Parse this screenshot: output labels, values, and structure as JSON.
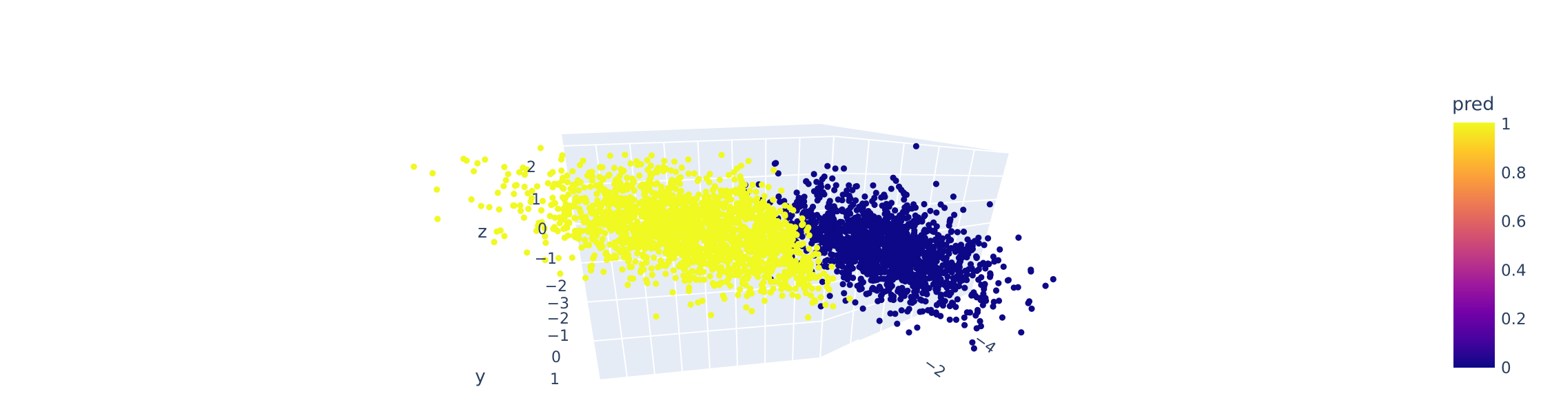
{
  "chart_data": {
    "type": "scatter3d",
    "title": "",
    "series": [
      {
        "pred": 1,
        "color": "#f0f921",
        "count": 1900,
        "x_range": [
          -2,
          5
        ],
        "y_range": [
          -3,
          2
        ],
        "z_range": [
          -2,
          2
        ]
      },
      {
        "pred": 0,
        "color": "#0d0887",
        "count": 1500,
        "x_range": [
          -5,
          -1
        ],
        "y_range": [
          -3,
          2
        ],
        "z_range": [
          -2,
          2
        ]
      }
    ],
    "axes": {
      "x": {
        "title": "",
        "ticks": [
          "−4",
          "−2"
        ]
      },
      "y": {
        "title": "y",
        "ticks": [
          "−3",
          "−2",
          "−1",
          "0",
          "1"
        ]
      },
      "z": {
        "title": "z",
        "ticks": [
          "2",
          "1",
          "0",
          "−1",
          "−2"
        ]
      }
    },
    "colorbar": {
      "title": "pred",
      "range": [
        0,
        1
      ],
      "ticks": [
        "1",
        "0.8",
        "0.6",
        "0.4",
        "0.2",
        "0"
      ],
      "colorscale": [
        "#0d0887",
        "#46039f",
        "#7201a8",
        "#9c179e",
        "#bd3786",
        "#d8576b",
        "#ed7953",
        "#fb9f3a",
        "#fdca26",
        "#f0f921"
      ]
    },
    "grid": true,
    "scene_background": "#e5ecf6"
  }
}
